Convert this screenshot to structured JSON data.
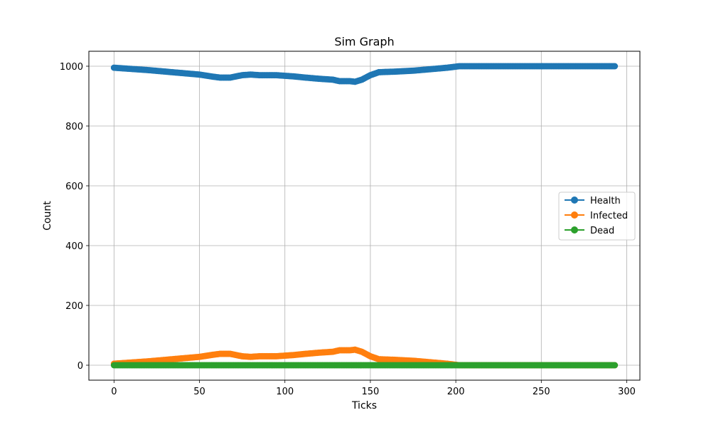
{
  "colors": {
    "health": "#1f77b4",
    "infected": "#ff7f0e",
    "dead": "#2ca02c",
    "grid": "#b0b0b0"
  },
  "chart_data": {
    "type": "line",
    "title": "Sim Graph",
    "xlabel": "Ticks",
    "ylabel": "Count",
    "xlim": [
      -14.7,
      307.7
    ],
    "ylim": [
      -50,
      1050
    ],
    "xticks": [
      0,
      50,
      100,
      150,
      200,
      250,
      300
    ],
    "yticks": [
      0,
      200,
      400,
      600,
      800,
      1000
    ],
    "grid": true,
    "legend_position": "center-right",
    "marker": "circle",
    "x_range": [
      0,
      293
    ],
    "series": [
      {
        "name": "Health",
        "color": "#1f77b4",
        "points": [
          [
            0,
            995
          ],
          [
            10,
            991
          ],
          [
            20,
            987
          ],
          [
            30,
            982
          ],
          [
            40,
            977
          ],
          [
            50,
            972
          ],
          [
            58,
            965
          ],
          [
            62,
            962
          ],
          [
            68,
            962
          ],
          [
            75,
            970
          ],
          [
            80,
            972
          ],
          [
            85,
            970
          ],
          [
            95,
            970
          ],
          [
            105,
            966
          ],
          [
            112,
            962
          ],
          [
            120,
            958
          ],
          [
            128,
            955
          ],
          [
            132,
            950
          ],
          [
            138,
            950
          ],
          [
            141,
            948
          ],
          [
            145,
            955
          ],
          [
            150,
            970
          ],
          [
            155,
            980
          ],
          [
            165,
            982
          ],
          [
            175,
            985
          ],
          [
            185,
            990
          ],
          [
            195,
            995
          ],
          [
            202,
            1000
          ],
          [
            293,
            1000
          ]
        ]
      },
      {
        "name": "Infected",
        "color": "#ff7f0e",
        "points": [
          [
            0,
            5
          ],
          [
            10,
            9
          ],
          [
            20,
            13
          ],
          [
            30,
            18
          ],
          [
            40,
            23
          ],
          [
            50,
            28
          ],
          [
            58,
            35
          ],
          [
            62,
            38
          ],
          [
            68,
            38
          ],
          [
            75,
            30
          ],
          [
            80,
            28
          ],
          [
            85,
            30
          ],
          [
            95,
            30
          ],
          [
            105,
            34
          ],
          [
            112,
            38
          ],
          [
            120,
            42
          ],
          [
            128,
            45
          ],
          [
            132,
            50
          ],
          [
            138,
            50
          ],
          [
            141,
            52
          ],
          [
            145,
            45
          ],
          [
            150,
            30
          ],
          [
            155,
            20
          ],
          [
            165,
            18
          ],
          [
            175,
            15
          ],
          [
            185,
            10
          ],
          [
            195,
            5
          ],
          [
            202,
            0
          ],
          [
            293,
            0
          ]
        ]
      },
      {
        "name": "Dead",
        "color": "#2ca02c",
        "points": [
          [
            0,
            0
          ],
          [
            293,
            0
          ]
        ]
      }
    ]
  }
}
